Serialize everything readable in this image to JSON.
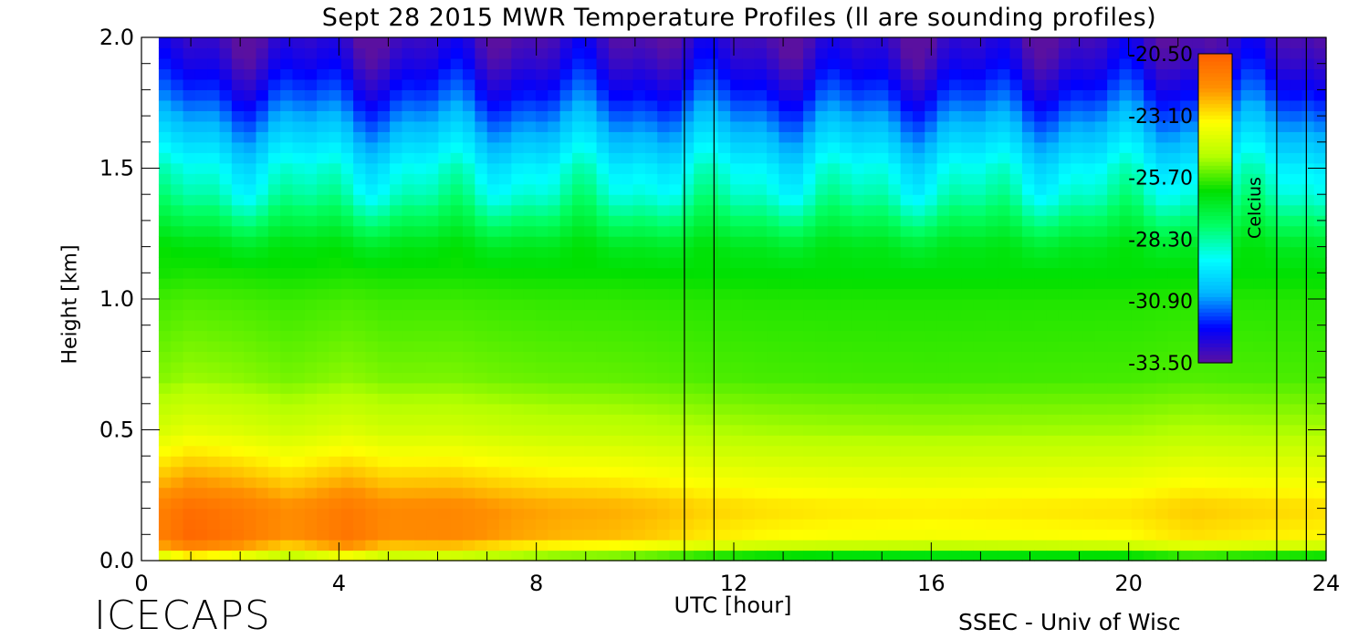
{
  "chart_data": {
    "type": "heatmap",
    "title": "Sept 28 2015 MWR Temperature Profiles (ll are sounding profiles)",
    "xlabel": "UTC [hour]",
    "ylabel": "Height [km]",
    "xlim": [
      0,
      24
    ],
    "ylim": [
      0,
      2
    ],
    "x_ticks": [
      "0",
      "4",
      "8",
      "12",
      "16",
      "20",
      "24"
    ],
    "y_ticks": [
      "0.0",
      "0.5",
      "1.0",
      "1.5",
      "2.0"
    ],
    "grid": false,
    "data_start_hour": 0.35,
    "sounding_times_hour": [
      11.0,
      11.6,
      23.0,
      23.6
    ],
    "colorbar": {
      "label": "Celcius",
      "min": -33.5,
      "max": -20.5,
      "tick_labels": [
        "-20.50",
        "-23.10",
        "-25.70",
        "-28.30",
        "-30.90",
        "-33.50"
      ],
      "placement": "top-right inside plot"
    },
    "temperature_vertical_profile": {
      "heights_km": [
        0.0,
        0.02,
        0.05,
        0.1,
        0.2,
        0.3,
        0.5,
        0.7,
        1.0,
        1.2,
        1.3,
        1.4,
        1.5,
        1.6,
        1.7,
        1.8,
        1.9,
        2.0
      ],
      "temperature_c": [
        -26.5,
        -25.2,
        -23.6,
        -22.5,
        -22.3,
        -23.1,
        -24.6,
        -25.5,
        -25.9,
        -26.6,
        -27.6,
        -28.6,
        -29.2,
        -30.1,
        -31.0,
        -31.9,
        -32.6,
        -33.1
      ]
    },
    "near_surface_warm_anomaly": {
      "hours": [
        0.3,
        1.0,
        2.0,
        3.0,
        4.2,
        5.0,
        6.3,
        7.5,
        8.5,
        9.5,
        10.5,
        11.3,
        12.5,
        14.0,
        16.0,
        18.0,
        20.0,
        21.3,
        22.5,
        24.0
      ],
      "delta_c": [
        1.2,
        2.2,
        1.6,
        0.7,
        1.7,
        0.9,
        1.0,
        0.4,
        0.1,
        0.0,
        -0.3,
        -0.7,
        -1.0,
        -1.2,
        -1.3,
        -1.2,
        -1.1,
        -0.6,
        -0.8,
        -1.0
      ]
    }
  },
  "footer": {
    "logo_text": "ICECAPS",
    "credit": "SSEC - Univ of Wisc"
  },
  "colors": {
    "scale": [
      "#5a10a0",
      "#0000ff",
      "#00b4ff",
      "#00ffff",
      "#00ff64",
      "#00e000",
      "#b4ff00",
      "#ffff00",
      "#ff9000",
      "#ff6000"
    ]
  }
}
